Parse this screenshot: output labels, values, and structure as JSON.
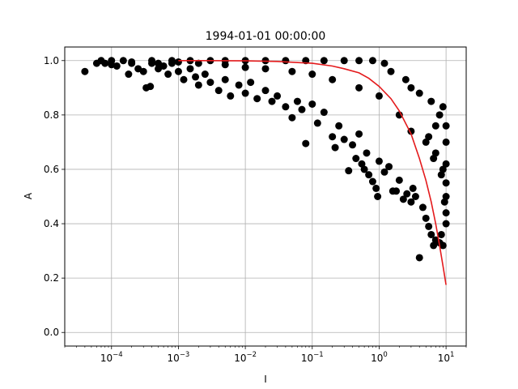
{
  "chart_data": {
    "type": "scatter",
    "title": "1994-01-01 00:00:00",
    "xlabel": "I",
    "ylabel": "A",
    "xscale": "log",
    "xlim": [
      2e-05,
      20
    ],
    "ylim": [
      -0.05,
      1.05
    ],
    "grid": true,
    "x_ticks": [
      {
        "value": 0.0001,
        "base": "10",
        "exp": "−4"
      },
      {
        "value": 0.001,
        "base": "10",
        "exp": "−3"
      },
      {
        "value": 0.01,
        "base": "10",
        "exp": "−2"
      },
      {
        "value": 0.1,
        "base": "10",
        "exp": "−1"
      },
      {
        "value": 1,
        "base": "10",
        "exp": "0"
      },
      {
        "value": 10,
        "base": "10",
        "exp": "1"
      }
    ],
    "y_ticks": [
      {
        "value": 0.0,
        "label": "0.0"
      },
      {
        "value": 0.2,
        "label": "0.2"
      },
      {
        "value": 0.4,
        "label": "0.4"
      },
      {
        "value": 0.6,
        "label": "0.6"
      },
      {
        "value": 0.8,
        "label": "0.8"
      },
      {
        "value": 1.0,
        "label": "1.0"
      }
    ],
    "series": [
      {
        "kind": "scatter",
        "color": "#000000",
        "points": [
          [
            4e-05,
            0.96
          ],
          [
            6e-05,
            0.99
          ],
          [
            7e-05,
            1.0
          ],
          [
            8e-05,
            0.99
          ],
          [
            0.0001,
            1.0
          ],
          [
            0.00012,
            0.98
          ],
          [
            0.00015,
            1.0
          ],
          [
            0.00018,
            0.95
          ],
          [
            0.0002,
            0.99
          ],
          [
            0.00025,
            0.97
          ],
          [
            0.0003,
            0.96
          ],
          [
            0.00033,
            0.9
          ],
          [
            0.00038,
            0.905
          ],
          [
            0.0004,
            0.99
          ],
          [
            0.0005,
            0.97
          ],
          [
            0.0006,
            0.98
          ],
          [
            0.0007,
            0.95
          ],
          [
            0.0008,
            0.99
          ],
          [
            0.001,
            0.96
          ],
          [
            0.0012,
            0.93
          ],
          [
            0.0015,
            0.97
          ],
          [
            0.0018,
            0.94
          ],
          [
            0.002,
            0.91
          ],
          [
            0.0025,
            0.95
          ],
          [
            0.003,
            0.92
          ],
          [
            0.004,
            0.89
          ],
          [
            0.005,
            0.93
          ],
          [
            0.006,
            0.87
          ],
          [
            0.008,
            0.91
          ],
          [
            0.01,
            0.88
          ],
          [
            0.012,
            0.92
          ],
          [
            0.015,
            0.86
          ],
          [
            0.02,
            0.89
          ],
          [
            0.025,
            0.85
          ],
          [
            0.03,
            0.87
          ],
          [
            0.04,
            0.83
          ],
          [
            0.05,
            0.79
          ],
          [
            0.06,
            0.85
          ],
          [
            0.07,
            0.82
          ],
          [
            0.08,
            0.695
          ],
          [
            0.1,
            0.84
          ],
          [
            0.12,
            0.77
          ],
          [
            0.15,
            0.81
          ],
          [
            0.2,
            0.72
          ],
          [
            0.22,
            0.68
          ],
          [
            0.25,
            0.76
          ],
          [
            0.3,
            0.71
          ],
          [
            0.35,
            0.595
          ],
          [
            0.4,
            0.69
          ],
          [
            0.45,
            0.64
          ],
          [
            0.5,
            0.73
          ],
          [
            0.55,
            0.62
          ],
          [
            0.6,
            0.6
          ],
          [
            0.65,
            0.66
          ],
          [
            0.7,
            0.58
          ],
          [
            0.8,
            0.555
          ],
          [
            0.9,
            0.53
          ],
          [
            0.95,
            0.5
          ],
          [
            1.0,
            0.63
          ],
          [
            1.2,
            0.59
          ],
          [
            1.4,
            0.61
          ],
          [
            1.6,
            0.52
          ],
          [
            1.8,
            0.52
          ],
          [
            2.0,
            0.56
          ],
          [
            2.3,
            0.49
          ],
          [
            2.6,
            0.51
          ],
          [
            3.0,
            0.48
          ],
          [
            3.2,
            0.53
          ],
          [
            3.5,
            0.5
          ],
          [
            4.0,
            0.275
          ],
          [
            4.5,
            0.46
          ],
          [
            5.0,
            0.42
          ],
          [
            5.5,
            0.39
          ],
          [
            6.0,
            0.36
          ],
          [
            6.5,
            0.32
          ],
          [
            7.0,
            0.34
          ],
          [
            8.0,
            0.33
          ],
          [
            8.5,
            0.36
          ],
          [
            9.0,
            0.32
          ],
          [
            10.0,
            0.4
          ],
          [
            0.0001,
            0.985
          ],
          [
            0.0002,
            0.995
          ],
          [
            0.0005,
            0.99
          ],
          [
            0.001,
            0.995
          ],
          [
            0.002,
            0.99
          ],
          [
            0.005,
            0.985
          ],
          [
            0.01,
            0.975
          ],
          [
            0.02,
            0.97
          ],
          [
            0.05,
            0.96
          ],
          [
            0.1,
            0.95
          ],
          [
            0.2,
            0.93
          ],
          [
            0.5,
            0.9
          ],
          [
            1.0,
            0.87
          ],
          [
            2.0,
            0.8
          ],
          [
            3.0,
            0.74
          ],
          [
            5.0,
            0.7
          ],
          [
            7.0,
            0.66
          ],
          [
            9.0,
            0.6
          ],
          [
            10.0,
            0.55
          ],
          [
            8.0,
            0.8
          ],
          [
            9.0,
            0.83
          ],
          [
            7.0,
            0.76
          ],
          [
            6.0,
            0.85
          ],
          [
            4.0,
            0.88
          ],
          [
            3.0,
            0.9
          ],
          [
            2.5,
            0.93
          ],
          [
            1.5,
            0.96
          ],
          [
            1.2,
            0.99
          ],
          [
            0.8,
            1.0
          ],
          [
            0.5,
            1.0
          ],
          [
            0.3,
            1.0
          ],
          [
            0.15,
            1.0
          ],
          [
            0.08,
            1.0
          ],
          [
            0.04,
            1.0
          ],
          [
            0.02,
            1.0
          ],
          [
            0.01,
            1.0
          ],
          [
            0.005,
            1.0
          ],
          [
            0.003,
            1.0
          ],
          [
            0.0015,
            1.0
          ],
          [
            0.0008,
            1.0
          ],
          [
            0.0004,
            1.0
          ],
          [
            10.0,
            0.76
          ],
          [
            10.0,
            0.7
          ],
          [
            10.0,
            0.62
          ],
          [
            10.0,
            0.5
          ],
          [
            10.0,
            0.44
          ],
          [
            9.5,
            0.48
          ],
          [
            8.5,
            0.58
          ],
          [
            6.5,
            0.64
          ],
          [
            5.5,
            0.72
          ]
        ]
      },
      {
        "kind": "line",
        "color": "#e41a1c",
        "points": [
          [
            0.001,
            1.0
          ],
          [
            0.003,
            1.0
          ],
          [
            0.01,
            0.999
          ],
          [
            0.03,
            0.997
          ],
          [
            0.1,
            0.99
          ],
          [
            0.2,
            0.98
          ],
          [
            0.3,
            0.97
          ],
          [
            0.5,
            0.955
          ],
          [
            0.7,
            0.935
          ],
          [
            1.0,
            0.905
          ],
          [
            1.5,
            0.86
          ],
          [
            2.0,
            0.815
          ],
          [
            3.0,
            0.73
          ],
          [
            4.0,
            0.64
          ],
          [
            5.0,
            0.56
          ],
          [
            6.0,
            0.48
          ],
          [
            7.0,
            0.4
          ],
          [
            8.0,
            0.32
          ],
          [
            9.0,
            0.245
          ],
          [
            10.0,
            0.175
          ]
        ]
      }
    ]
  }
}
